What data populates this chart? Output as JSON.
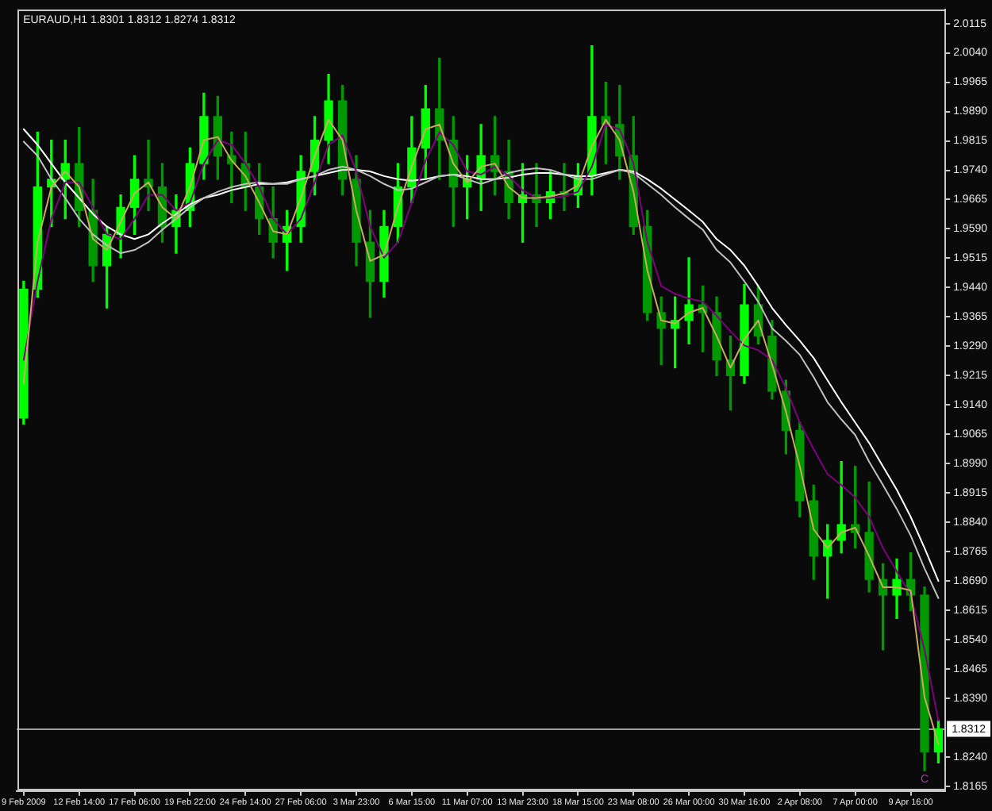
{
  "chart_data": {
    "type": "candlestick",
    "title": "EURAUD,H1 1.8301 1.8312 1.8274 1.8312",
    "categories": [
      "9 Feb 2009",
      null,
      null,
      null,
      "12 Feb 14:00",
      null,
      null,
      null,
      "17 Feb 06:00",
      null,
      null,
      null,
      "19 Feb 22:00",
      null,
      null,
      null,
      "24 Feb 14:00",
      null,
      null,
      null,
      "27 Feb 06:00",
      null,
      null,
      null,
      "3 Mar 23:00",
      null,
      null,
      null,
      "6 Mar 15:00",
      null,
      null,
      null,
      "11 Mar 07:00",
      null,
      null,
      null,
      "13 Mar 23:00",
      null,
      null,
      null,
      "18 Mar 15:00",
      null,
      null,
      null,
      "23 Mar 08:00",
      null,
      null,
      null,
      "26 Mar 00:00",
      null,
      null,
      null,
      "30 Mar 16:00",
      null,
      null,
      null,
      "2 Apr 08:00",
      null,
      null,
      null,
      "7 Apr 00:00",
      null,
      null,
      null,
      "9 Apr 16:00",
      null,
      null
    ],
    "colors": [
      "#00ff00",
      "#00ff00",
      "#00ff00",
      "#00ff00",
      "#009900",
      "#009900",
      "#00ff00",
      "#00ff00",
      "#00ff00",
      "#009900",
      "#009900",
      "#00ff00",
      "#00ff00",
      "#00ff00",
      "#009900",
      "#009900",
      "#009900",
      "#009900",
      "#009900",
      "#00ff00",
      "#00ff00",
      "#00ff00",
      "#00ff00",
      "#009900",
      "#009900",
      "#009900",
      "#00ff00",
      "#00ff00",
      "#00ff00",
      "#00ff00",
      "#009900",
      "#009900",
      "#00ff00",
      "#00ff00",
      "#009900",
      "#009900",
      "#00ff00",
      "#009900",
      "#00ff00",
      "#009900",
      "#00ff00",
      "#00ff00",
      "#009900",
      "#009900",
      "#009900",
      "#009900",
      "#009900",
      "#00ff00",
      "#00ff00",
      "#009900",
      "#009900",
      "#009900",
      "#00ff00",
      "#009900",
      "#009900",
      "#009900",
      "#009900",
      "#009900",
      "#00ff00",
      "#00ff00",
      "#009900",
      "#009900",
      "#009900",
      "#00ff00",
      "#009900",
      "#009900",
      "#00ff00"
    ],
    "ohlc": [
      [
        1.9107,
        1.9456,
        1.9091,
        1.9436
      ],
      [
        1.9436,
        1.9837,
        1.9416,
        1.9697
      ],
      [
        1.9697,
        1.9817,
        1.9596,
        1.9717
      ],
      [
        1.9717,
        1.9817,
        1.9616,
        1.9757
      ],
      [
        1.9757,
        1.9849,
        1.9596,
        1.9637
      ],
      [
        1.9637,
        1.9717,
        1.9456,
        1.9496
      ],
      [
        1.9496,
        1.9596,
        1.9388,
        1.9576
      ],
      [
        1.9576,
        1.9677,
        1.9516,
        1.9645
      ],
      [
        1.9645,
        1.9777,
        1.9576,
        1.9717
      ],
      [
        1.9717,
        1.9817,
        1.9637,
        1.9697
      ],
      [
        1.9697,
        1.9757,
        1.9556,
        1.9596
      ],
      [
        1.9596,
        1.9677,
        1.9528,
        1.9637
      ],
      [
        1.9637,
        1.9797,
        1.9596,
        1.9757
      ],
      [
        1.9757,
        1.9937,
        1.9717,
        1.9877
      ],
      [
        1.9877,
        1.9929,
        1.9717,
        1.9777
      ],
      [
        1.9777,
        1.9837,
        1.9657,
        1.9757
      ],
      [
        1.9757,
        1.9837,
        1.9637,
        1.9697
      ],
      [
        1.9697,
        1.9757,
        1.9576,
        1.9616
      ],
      [
        1.9616,
        1.9697,
        1.9516,
        1.9556
      ],
      [
        1.9556,
        1.9637,
        1.9484,
        1.9596
      ],
      [
        1.9596,
        1.9777,
        1.9556,
        1.9737
      ],
      [
        1.9737,
        1.9877,
        1.9677,
        1.9817
      ],
      [
        1.9817,
        1.9985,
        1.9757,
        1.9917
      ],
      [
        1.9917,
        1.9957,
        1.9677,
        1.9717
      ],
      [
        1.9717,
        1.9777,
        1.9496,
        1.9556
      ],
      [
        1.9556,
        1.9637,
        1.9364,
        1.9456
      ],
      [
        1.9456,
        1.9637,
        1.9416,
        1.9596
      ],
      [
        1.9596,
        1.9757,
        1.9556,
        1.9697
      ],
      [
        1.9697,
        1.9877,
        1.9657,
        1.9797
      ],
      [
        1.9797,
        1.9957,
        1.9717,
        1.9897
      ],
      [
        1.9897,
        2.0026,
        1.9717,
        1.9817
      ],
      [
        1.9817,
        1.9877,
        1.9596,
        1.9697
      ],
      [
        1.9697,
        1.9777,
        1.9616,
        1.9717
      ],
      [
        1.9717,
        1.9857,
        1.9637,
        1.9777
      ],
      [
        1.9777,
        1.9877,
        1.9677,
        1.9737
      ],
      [
        1.9737,
        1.9817,
        1.9616,
        1.9657
      ],
      [
        1.9657,
        1.9757,
        1.9556,
        1.9677
      ],
      [
        1.9677,
        1.9757,
        1.9596,
        1.9657
      ],
      [
        1.9657,
        1.9737,
        1.9616,
        1.9685
      ],
      [
        1.9685,
        1.9757,
        1.9637,
        1.9677
      ],
      [
        1.9677,
        1.9757,
        1.9645,
        1.9725
      ],
      [
        1.9725,
        2.0058,
        1.9677,
        1.9877
      ],
      [
        1.9877,
        1.9965,
        1.9757,
        1.9857
      ],
      [
        1.9857,
        1.9957,
        1.9717,
        1.9777
      ],
      [
        1.9777,
        1.9877,
        1.9576,
        1.9596
      ],
      [
        1.9596,
        1.9637,
        1.9356,
        1.9376
      ],
      [
        1.9376,
        1.9416,
        1.9243,
        1.9336
      ],
      [
        1.9336,
        1.9416,
        1.9235,
        1.9356
      ],
      [
        1.9356,
        1.9516,
        1.9296,
        1.9396
      ],
      [
        1.9396,
        1.9444,
        1.9276,
        1.9376
      ],
      [
        1.9376,
        1.9416,
        1.9215,
        1.9255
      ],
      [
        1.9255,
        1.9316,
        1.9127,
        1.9215
      ],
      [
        1.9215,
        1.9448,
        1.9195,
        1.9396
      ],
      [
        1.9396,
        1.9444,
        1.9296,
        1.9316
      ],
      [
        1.9316,
        1.9356,
        1.9155,
        1.9175
      ],
      [
        1.9175,
        1.9203,
        1.9015,
        1.9075
      ],
      [
        1.9075,
        1.9095,
        1.8854,
        1.8895
      ],
      [
        1.8895,
        1.8935,
        1.8694,
        1.8754
      ],
      [
        1.8754,
        1.8834,
        1.8646,
        1.8794
      ],
      [
        1.8794,
        1.8995,
        1.8762,
        1.8834
      ],
      [
        1.8834,
        1.8983,
        1.8774,
        1.8814
      ],
      [
        1.8814,
        1.8943,
        1.8662,
        1.8694
      ],
      [
        1.8694,
        1.8734,
        1.8514,
        1.8654
      ],
      [
        1.8654,
        1.8746,
        1.8594,
        1.8694
      ],
      [
        1.8694,
        1.8762,
        1.8614,
        1.8654
      ],
      [
        1.8654,
        1.8674,
        1.8205,
        1.8253
      ],
      [
        1.8253,
        1.8333,
        1.8225,
        1.8312
      ]
    ],
    "series": [
      {
        "type": "line",
        "color": "#c8aa64",
        "values": [
          1.9195,
          1.9556,
          1.9697,
          1.9737,
          1.9697,
          1.9564,
          1.9536,
          1.9608,
          1.9681,
          1.9709,
          1.9645,
          1.9616,
          1.9697,
          1.9817,
          1.9825,
          1.9765,
          1.9725,
          1.9657,
          1.9584,
          1.9576,
          1.9669,
          1.9777,
          1.9869,
          1.9817,
          1.9637,
          1.9508,
          1.9524,
          1.9645,
          1.9749,
          1.9845,
          1.9857,
          1.9757,
          1.9709,
          1.9749,
          1.9757,
          1.9697,
          1.9669,
          1.9669,
          1.9673,
          1.9681,
          1.9701,
          1.9801,
          1.9869,
          1.9817,
          1.9685,
          1.9484,
          1.9356,
          1.9348,
          1.9376,
          1.9388,
          1.9316,
          1.9235,
          1.9308,
          1.9356,
          1.9243,
          1.9123,
          1.8983,
          1.8822,
          1.8774,
          1.8814,
          1.8826,
          1.8754,
          1.8674,
          1.8674,
          1.8666,
          1.8393,
          1.8273
        ]
      },
      {
        "type": "line",
        "color": "#800080",
        "values": [
          1.9255,
          1.9456,
          1.9616,
          1.9709,
          1.9709,
          1.9645,
          1.9576,
          1.9564,
          1.9616,
          1.9677,
          1.9677,
          1.9637,
          1.9657,
          1.9757,
          1.9817,
          1.9805,
          1.9757,
          1.9697,
          1.9616,
          1.9576,
          1.9616,
          1.9709,
          1.9805,
          1.9829,
          1.9737,
          1.9596,
          1.9516,
          1.9556,
          1.9657,
          1.9765,
          1.9837,
          1.9805,
          1.9737,
          1.9729,
          1.9749,
          1.9725,
          1.9689,
          1.9669,
          1.9669,
          1.9673,
          1.9685,
          1.9749,
          1.9857,
          1.9845,
          1.9757,
          1.9556,
          1.9444,
          1.9424,
          1.9412,
          1.9404,
          1.9368,
          1.9328,
          1.9292,
          1.928,
          1.9255,
          1.9183,
          1.9095,
          1.9027,
          1.8963,
          1.8935,
          1.8903,
          1.8854,
          1.8774,
          1.8714,
          1.8654,
          1.8514,
          1.8333
        ]
      },
      {
        "type": "line",
        "color": "#c0c0c0",
        "values": [
          1.9813,
          1.9777,
          1.9717,
          1.9669,
          1.9616,
          1.9576,
          1.9548,
          1.9528,
          1.9536,
          1.9556,
          1.9588,
          1.9616,
          1.9645,
          1.9669,
          1.9685,
          1.9697,
          1.9705,
          1.9709,
          1.9705,
          1.9705,
          1.9717,
          1.9725,
          1.9741,
          1.9749,
          1.9741,
          1.9725,
          1.9705,
          1.9689,
          1.9693,
          1.9709,
          1.9725,
          1.9729,
          1.9717,
          1.9705,
          1.9717,
          1.9733,
          1.9741,
          1.9745,
          1.9741,
          1.9729,
          1.9717,
          1.9717,
          1.9729,
          1.9741,
          1.9733,
          1.9705,
          1.9677,
          1.9645,
          1.9616,
          1.9588,
          1.9536,
          1.9504,
          1.9456,
          1.9404,
          1.9336,
          1.9304,
          1.9268,
          1.9211,
          1.9147,
          1.9103,
          1.9063,
          1.8995,
          1.8935,
          1.8874,
          1.8806,
          1.8722,
          1.8646
        ]
      },
      {
        "type": "line",
        "color": "#ffffff",
        "values": [
          1.9845,
          1.9805,
          1.9757,
          1.9709,
          1.9669,
          1.9628,
          1.9596,
          1.9576,
          1.9564,
          1.9576,
          1.9604,
          1.9628,
          1.9653,
          1.9669,
          1.9677,
          1.9689,
          1.9697,
          1.9705,
          1.9705,
          1.9709,
          1.9717,
          1.9725,
          1.9733,
          1.9741,
          1.9741,
          1.9737,
          1.9725,
          1.9717,
          1.9713,
          1.9717,
          1.9725,
          1.9729,
          1.9725,
          1.9717,
          1.9717,
          1.9721,
          1.9729,
          1.9733,
          1.9733,
          1.9729,
          1.9725,
          1.9725,
          1.9733,
          1.9741,
          1.9737,
          1.9717,
          1.9693,
          1.9665,
          1.9637,
          1.9608,
          1.9564,
          1.9536,
          1.9496,
          1.9444,
          1.9388,
          1.9344,
          1.9304,
          1.926,
          1.9203,
          1.9147,
          1.9095,
          1.9043,
          1.8983,
          1.8923,
          1.8854,
          1.8774,
          1.869
        ]
      }
    ],
    "ylim": [
      1.8153,
      2.015
    ],
    "yticks": [
      2.0115,
      {
        "value": 2.004,
        "label": "2.0040"
      },
      1.9965,
      {
        "value": 1.989,
        "label": "1.9890"
      },
      1.9815,
      {
        "value": 1.974,
        "label": "1.9740"
      },
      1.9665,
      {
        "value": 1.959,
        "label": "1.9590"
      },
      1.9515,
      {
        "value": 1.944,
        "label": "1.9440"
      },
      1.9365,
      {
        "value": 1.929,
        "label": "1.9290"
      },
      1.9215,
      {
        "value": 1.914,
        "label": "1.9140"
      },
      1.9065,
      {
        "value": 1.899,
        "label": "1.8990"
      },
      1.8915,
      {
        "value": 1.884,
        "label": "1.8840"
      },
      1.8765,
      {
        "value": 1.869,
        "label": "1.8690"
      },
      1.8615,
      {
        "value": 1.854,
        "label": "1.8540"
      },
      1.8465,
      {
        "value": 1.839,
        "label": "1.8390"
      },
      {
        "value": 1.824,
        "label": "1.8240"
      },
      1.8165
    ],
    "ref_lines": [
      {
        "axis": "y",
        "value": 1.8312,
        "label": "1.8312",
        "color": "#a0a0a0"
      }
    ],
    "annotations": [
      {
        "text": "C",
        "y": 1.8197
      }
    ]
  }
}
